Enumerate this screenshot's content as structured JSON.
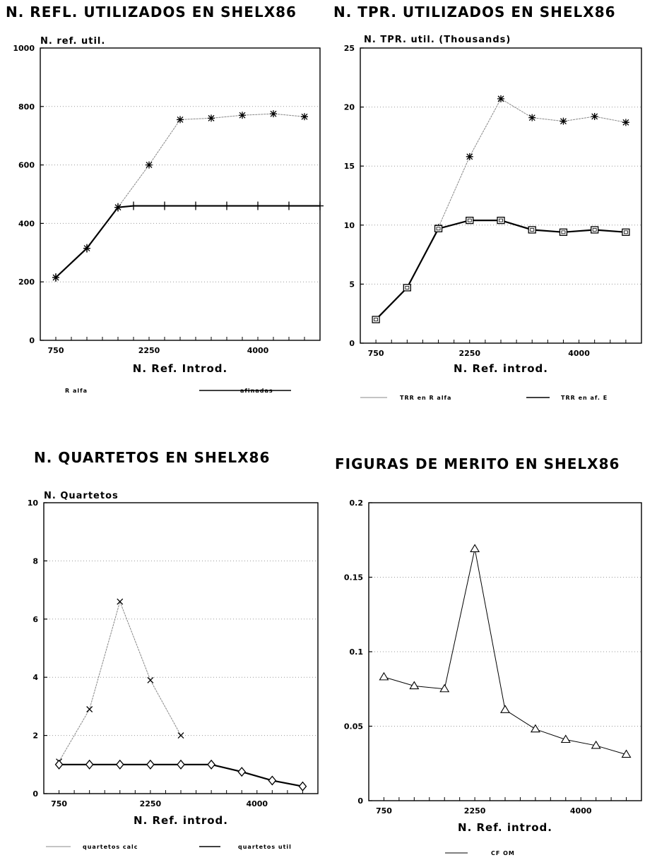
{
  "chart_data": [
    {
      "type": "line",
      "title": "N. REFL. UTILIZADOS EN SHELX86",
      "ylabel": "N. ref. util.",
      "xlabel": "N. Ref. Introd.",
      "xlim": [
        500,
        5000
      ],
      "ylim": [
        0,
        1000
      ],
      "xticks": [
        750,
        2250,
        4000
      ],
      "yticks": [
        0,
        200,
        400,
        600,
        800,
        1000
      ],
      "grid": "horizontal dotted",
      "legend_position": "bottom",
      "series": [
        {
          "name": "R alfa",
          "color": "#888888",
          "style": "thin",
          "marker": "star",
          "x": [
            750,
            1250,
            1750,
            2250,
            2750,
            3250,
            3750,
            4250,
            4750
          ],
          "y": [
            215,
            315,
            455,
            600,
            755,
            760,
            770,
            775,
            765
          ]
        },
        {
          "name": "afinadas",
          "color": "#000000",
          "style": "thick",
          "marker": "plus",
          "x": [
            750,
            1250,
            1750,
            2000,
            2500,
            3000,
            3500,
            4000,
            4500,
            5000
          ],
          "y": [
            215,
            315,
            455,
            460,
            460,
            460,
            460,
            460,
            460,
            460
          ]
        }
      ]
    },
    {
      "type": "line",
      "title": "N. TPR. UTILIZADOS EN SHELX86",
      "ylabel": "N. TPR. util. (Thousands)",
      "xlabel": "N. Ref. introd.",
      "xlim": [
        500,
        5000
      ],
      "ylim": [
        0,
        25
      ],
      "xticks": [
        750,
        2250,
        4000
      ],
      "yticks": [
        0,
        5,
        10,
        15,
        20,
        25
      ],
      "grid": "horizontal dotted",
      "legend_position": "bottom",
      "series": [
        {
          "name": "TRR en R alfa",
          "color": "#888888",
          "style": "thin",
          "marker": "star",
          "x": [
            750,
            1250,
            1750,
            2250,
            2750,
            3250,
            3750,
            4250,
            4750
          ],
          "y": [
            2.0,
            4.7,
            9.8,
            15.8,
            20.7,
            19.1,
            18.8,
            19.2,
            18.7
          ]
        },
        {
          "name": "TRR en af. E",
          "color": "#000000",
          "style": "thick",
          "marker": "square",
          "x": [
            750,
            1250,
            1750,
            2250,
            2750,
            3250,
            3750,
            4250,
            4750
          ],
          "y": [
            2.0,
            4.7,
            9.7,
            10.4,
            10.4,
            9.6,
            9.4,
            9.6,
            9.4
          ]
        }
      ]
    },
    {
      "type": "line",
      "title": "N. QUARTETOS EN SHELX86",
      "ylabel": "N. Quartetos",
      "xlabel": "N. Ref. introd.",
      "xlim": [
        500,
        5000
      ],
      "ylim": [
        0,
        10
      ],
      "xticks": [
        750,
        2250,
        4000
      ],
      "yticks": [
        0,
        2,
        4,
        6,
        8,
        10
      ],
      "grid": "horizontal dotted",
      "legend_position": "bottom",
      "series": [
        {
          "name": "quartetos calc",
          "color": "#888888",
          "style": "thin",
          "marker": "x",
          "x": [
            750,
            1250,
            1750,
            2250,
            2750
          ],
          "y": [
            1.1,
            2.9,
            6.6,
            3.9,
            2.0
          ]
        },
        {
          "name": "quartetos util",
          "color": "#000000",
          "style": "thick",
          "marker": "diamond",
          "x": [
            750,
            1250,
            1750,
            2250,
            2750,
            3250,
            3750,
            4250,
            4750
          ],
          "y": [
            1.0,
            1.0,
            1.0,
            1.0,
            1.0,
            1.0,
            0.75,
            0.45,
            0.25
          ]
        }
      ]
    },
    {
      "type": "line",
      "title": "FIGURAS DE MERITO EN SHELX86",
      "ylabel": "",
      "xlabel": "N. Ref. introd.",
      "xlim": [
        500,
        5000
      ],
      "ylim": [
        0,
        0.2
      ],
      "xticks": [
        750,
        2250,
        4000
      ],
      "yticks": [
        0,
        0.05,
        0.1,
        0.15,
        0.2
      ],
      "grid": "horizontal dotted",
      "legend_position": "bottom",
      "series": [
        {
          "name": "CF OM",
          "color": "#000000",
          "style": "thin",
          "marker": "triangle",
          "x": [
            750,
            1250,
            1750,
            2250,
            2750,
            3250,
            3750,
            4250,
            4750
          ],
          "y": [
            0.083,
            0.077,
            0.075,
            0.169,
            0.061,
            0.048,
            0.041,
            0.037,
            0.031
          ]
        }
      ]
    }
  ]
}
